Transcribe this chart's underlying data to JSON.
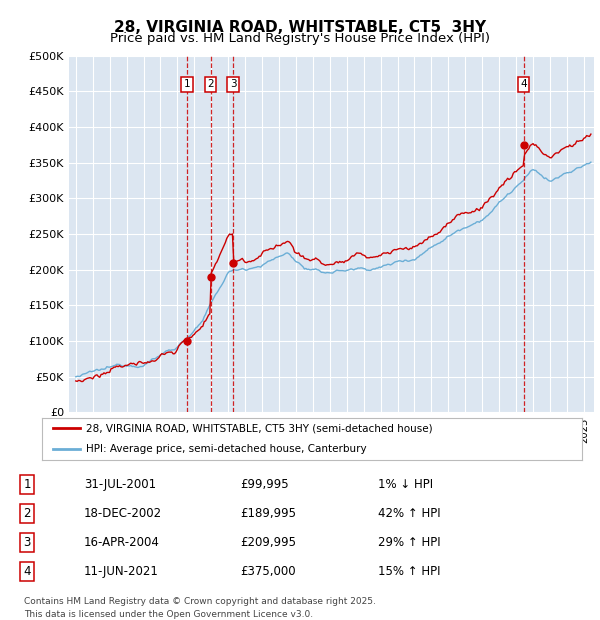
{
  "title": "28, VIRGINIA ROAD, WHITSTABLE, CT5  3HY",
  "subtitle": "Price paid vs. HM Land Registry's House Price Index (HPI)",
  "ylim": [
    0,
    500000
  ],
  "yticks": [
    0,
    50000,
    100000,
    150000,
    200000,
    250000,
    300000,
    350000,
    400000,
    450000,
    500000
  ],
  "ytick_labels": [
    "£0",
    "£50K",
    "£100K",
    "£150K",
    "£200K",
    "£250K",
    "£300K",
    "£350K",
    "£400K",
    "£450K",
    "£500K"
  ],
  "plot_bg_color": "#dce6f1",
  "line_color_hpi": "#6baed6",
  "line_color_price": "#cc0000",
  "transaction_dates": [
    2001.58,
    2002.96,
    2004.29,
    2021.44
  ],
  "transaction_prices": [
    99995,
    189995,
    209995,
    375000
  ],
  "transaction_labels": [
    "1",
    "2",
    "3",
    "4"
  ],
  "vline_color": "#cc0000",
  "legend_label_price": "28, VIRGINIA ROAD, WHITSTABLE, CT5 3HY (semi-detached house)",
  "legend_label_hpi": "HPI: Average price, semi-detached house, Canterbury",
  "table_rows": [
    [
      "1",
      "31-JUL-2001",
      "£99,995",
      "1% ↓ HPI"
    ],
    [
      "2",
      "18-DEC-2002",
      "£189,995",
      "42% ↑ HPI"
    ],
    [
      "3",
      "16-APR-2004",
      "£209,995",
      "29% ↑ HPI"
    ],
    [
      "4",
      "11-JUN-2021",
      "£375,000",
      "15% ↑ HPI"
    ]
  ],
  "footer": "Contains HM Land Registry data © Crown copyright and database right 2025.\nThis data is licensed under the Open Government Licence v3.0.",
  "title_fontsize": 11,
  "subtitle_fontsize": 9.5
}
